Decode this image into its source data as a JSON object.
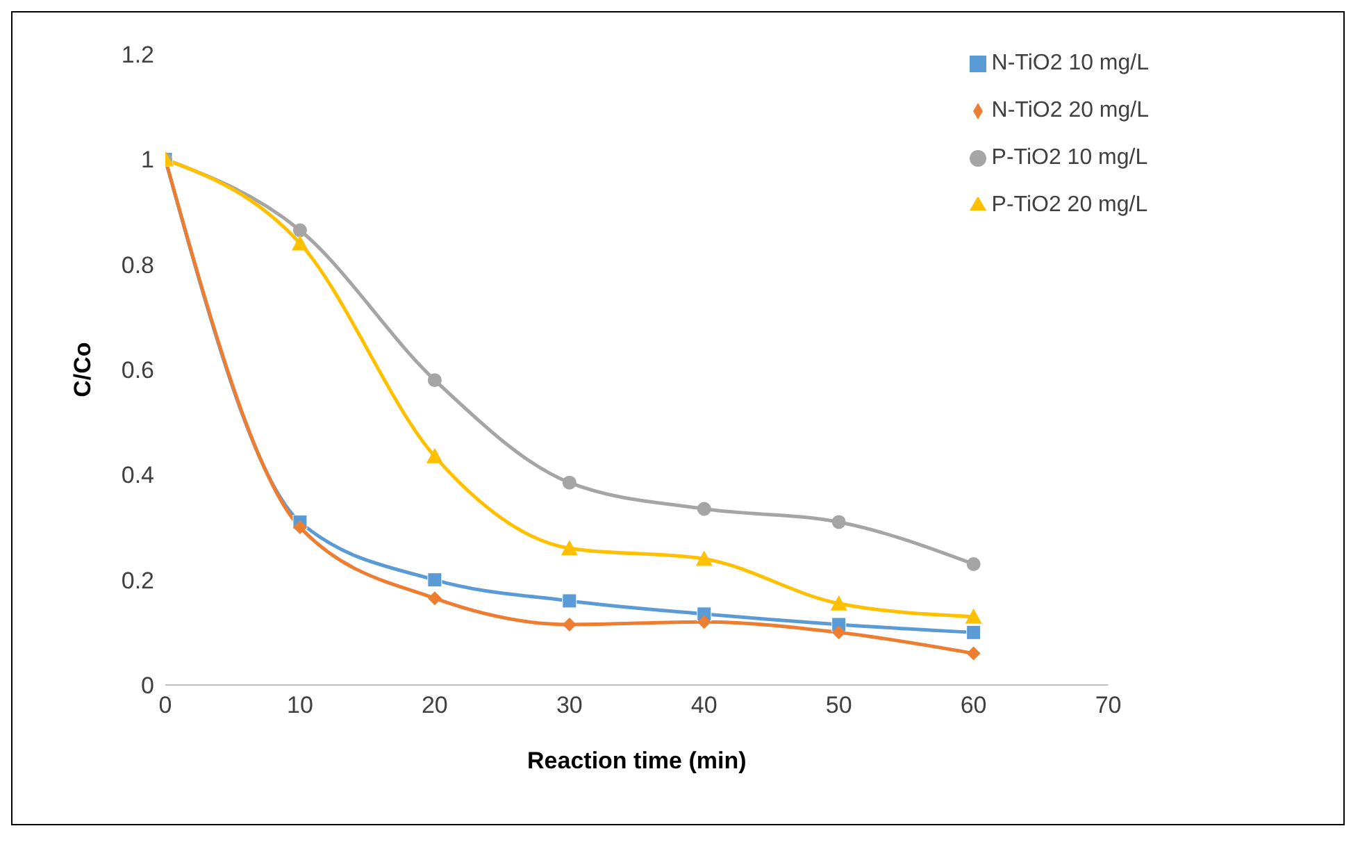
{
  "chart_data": {
    "type": "line",
    "xlabel": "Reaction time (min)",
    "ylabel": "C/Co",
    "x": [
      0,
      10,
      20,
      30,
      40,
      50,
      60
    ],
    "xlim": [
      0,
      70
    ],
    "xticks": [
      0,
      10,
      20,
      30,
      40,
      50,
      60,
      70
    ],
    "ylim": [
      0,
      1.2
    ],
    "yticks": [
      0,
      0.2,
      0.4,
      0.6,
      0.8,
      1,
      1.2
    ],
    "grid": false,
    "legend": "top right",
    "series": [
      {
        "name": "N-TiO2 10 mg/L",
        "color": "#5b9bd5",
        "marker": "square",
        "values": [
          1,
          0.31,
          0.2,
          0.16,
          0.135,
          0.115,
          0.1
        ]
      },
      {
        "name": "N-TiO2 20 mg/L",
        "color": "#ed7d31",
        "marker": "diamond",
        "values": [
          1,
          0.3,
          0.165,
          0.115,
          0.12,
          0.1,
          0.06
        ]
      },
      {
        "name": "P-TiO2 10 mg/L",
        "color": "#a5a5a5",
        "marker": "circle",
        "values": [
          1,
          0.865,
          0.58,
          0.385,
          0.335,
          0.31,
          0.23
        ]
      },
      {
        "name": "P-TiO2 20 mg/L",
        "color": "#ffc000",
        "marker": "triangle",
        "values": [
          1,
          0.84,
          0.435,
          0.26,
          0.24,
          0.155,
          0.13
        ]
      }
    ]
  }
}
